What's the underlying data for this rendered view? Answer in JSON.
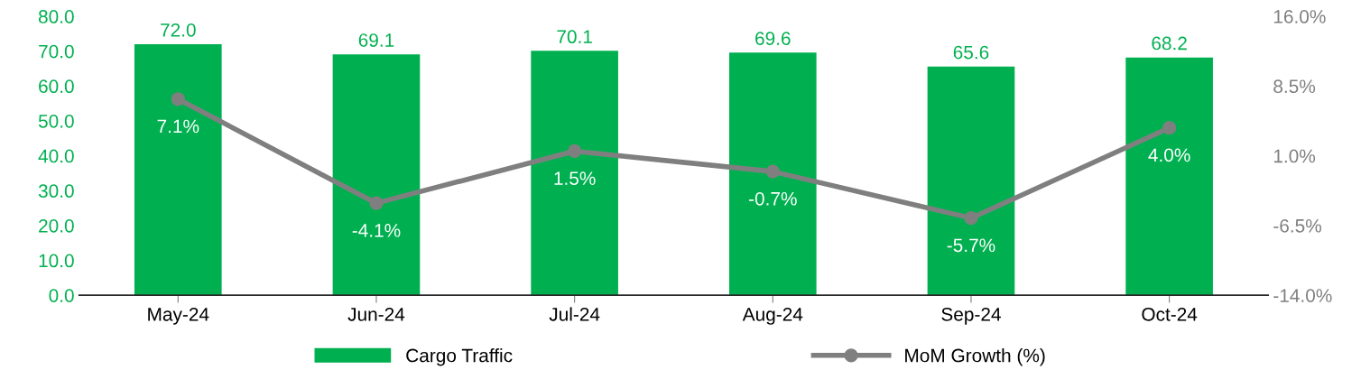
{
  "chart_data": {
    "type": "bar",
    "categories": [
      "May-24",
      "Jun-24",
      "Jul-24",
      "Aug-24",
      "Sep-24",
      "Oct-24"
    ],
    "series": [
      {
        "name": "Cargo Traffic",
        "color": "#00b050",
        "values": [
          72.0,
          69.1,
          70.1,
          69.6,
          65.6,
          68.2
        ],
        "value_labels": [
          "72.0",
          "69.1",
          "70.1",
          "69.6",
          "65.6",
          "68.2"
        ]
      },
      {
        "name": "MoM Growth (%)",
        "type": "line",
        "axis": "y2",
        "color": "#7f7f7f",
        "marker": "circle",
        "values": [
          7.1,
          -4.1,
          1.5,
          -0.7,
          -5.7,
          4.0
        ],
        "value_labels": [
          "7.1%",
          "-4.1%",
          "1.5%",
          "-0.7%",
          "-5.7%",
          "4.0%"
        ]
      }
    ],
    "ylim": [
      0,
      80
    ],
    "yticks": [
      {
        "value": 0,
        "label": "0.0"
      },
      {
        "value": 10,
        "label": "10.0"
      },
      {
        "value": 20,
        "label": "20.0"
      },
      {
        "value": 30,
        "label": "30.0"
      },
      {
        "value": 40,
        "label": "40.0"
      },
      {
        "value": 50,
        "label": "50.0"
      },
      {
        "value": 60,
        "label": "60.0"
      },
      {
        "value": 70,
        "label": "70.0"
      },
      {
        "value": 80,
        "label": "80.0"
      }
    ],
    "y2lim": [
      -14,
      16
    ],
    "y2ticks": [
      {
        "value": -14,
        "label": "-14.0%"
      },
      {
        "value": -6.5,
        "label": "-6.5%"
      },
      {
        "value": 1,
        "label": "1.0%"
      },
      {
        "value": 8.5,
        "label": "8.5%"
      },
      {
        "value": 16,
        "label": "16.0%"
      }
    ],
    "grid": false,
    "legend": "bottom"
  }
}
